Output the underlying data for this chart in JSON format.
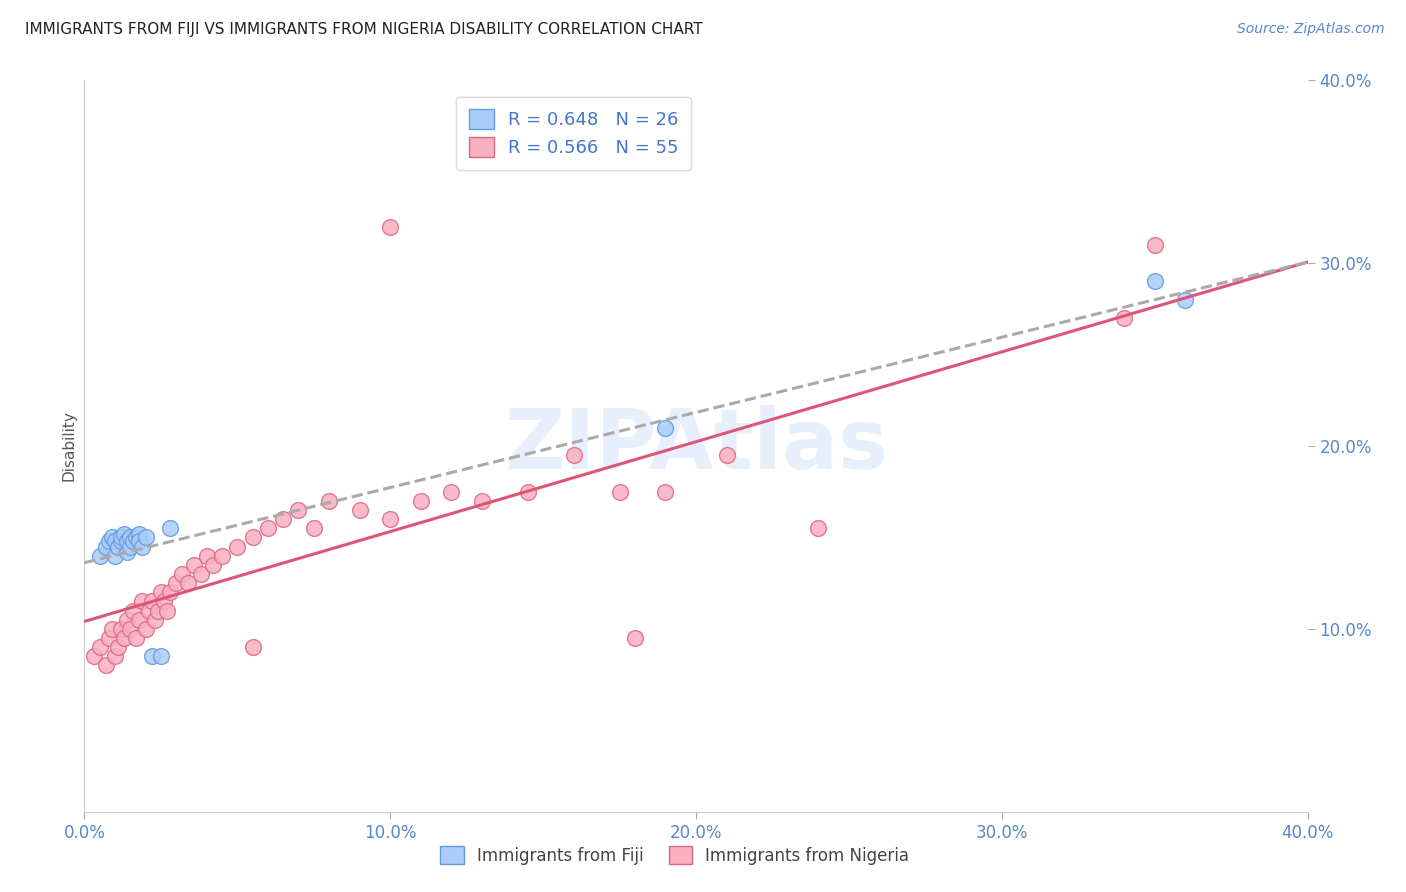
{
  "title": "IMMIGRANTS FROM FIJI VS IMMIGRANTS FROM NIGERIA DISABILITY CORRELATION CHART",
  "source": "Source: ZipAtlas.com",
  "ylabel": "Disability",
  "xlim": [
    0.0,
    0.4
  ],
  "ylim": [
    0.0,
    0.4
  ],
  "xticks": [
    0.0,
    0.1,
    0.2,
    0.3,
    0.4
  ],
  "yticks": [
    0.1,
    0.2,
    0.3,
    0.4
  ],
  "xticklabels": [
    "0.0%",
    "10.0%",
    "20.0%",
    "30.0%",
    "40.0%"
  ],
  "yticklabels": [
    "10.0%",
    "20.0%",
    "30.0%",
    "40.0%"
  ],
  "fiji_color": "#aaccf8",
  "fiji_edge_color": "#6699dd",
  "nigeria_color": "#f8b0c0",
  "nigeria_edge_color": "#dd6688",
  "fiji_R": 0.648,
  "fiji_N": 26,
  "nigeria_R": 0.566,
  "nigeria_N": 55,
  "fiji_line_color": "#aaaaaa",
  "nigeria_line_color": "#dd5577",
  "fiji_solid_line_color": "#4477cc",
  "tick_color": "#5588cc",
  "legend_text_color": "#4477cc",
  "watermark": "ZIPAtlas",
  "fiji_x": [
    0.005,
    0.007,
    0.008,
    0.009,
    0.01,
    0.01,
    0.011,
    0.012,
    0.012,
    0.013,
    0.014,
    0.014,
    0.015,
    0.015,
    0.016,
    0.017,
    0.018,
    0.018,
    0.019,
    0.02,
    0.022,
    0.025,
    0.028,
    0.19,
    0.35,
    0.36
  ],
  "fiji_y": [
    0.14,
    0.145,
    0.148,
    0.15,
    0.14,
    0.148,
    0.145,
    0.148,
    0.15,
    0.152,
    0.142,
    0.148,
    0.145,
    0.15,
    0.148,
    0.15,
    0.152,
    0.148,
    0.145,
    0.15,
    0.085,
    0.085,
    0.155,
    0.21,
    0.29,
    0.28
  ],
  "nigeria_x": [
    0.003,
    0.005,
    0.007,
    0.008,
    0.009,
    0.01,
    0.011,
    0.012,
    0.013,
    0.014,
    0.015,
    0.016,
    0.017,
    0.018,
    0.019,
    0.02,
    0.021,
    0.022,
    0.023,
    0.024,
    0.025,
    0.026,
    0.027,
    0.028,
    0.03,
    0.032,
    0.034,
    0.036,
    0.038,
    0.04,
    0.042,
    0.045,
    0.05,
    0.055,
    0.06,
    0.065,
    0.07,
    0.075,
    0.08,
    0.09,
    0.1,
    0.11,
    0.12,
    0.13,
    0.145,
    0.16,
    0.175,
    0.19,
    0.21,
    0.24,
    0.1,
    0.18,
    0.34,
    0.055,
    0.35
  ],
  "nigeria_y": [
    0.085,
    0.09,
    0.08,
    0.095,
    0.1,
    0.085,
    0.09,
    0.1,
    0.095,
    0.105,
    0.1,
    0.11,
    0.095,
    0.105,
    0.115,
    0.1,
    0.11,
    0.115,
    0.105,
    0.11,
    0.12,
    0.115,
    0.11,
    0.12,
    0.125,
    0.13,
    0.125,
    0.135,
    0.13,
    0.14,
    0.135,
    0.14,
    0.145,
    0.15,
    0.155,
    0.16,
    0.165,
    0.155,
    0.17,
    0.165,
    0.16,
    0.17,
    0.175,
    0.17,
    0.175,
    0.195,
    0.175,
    0.175,
    0.195,
    0.155,
    0.32,
    0.095,
    0.27,
    0.09,
    0.31
  ]
}
